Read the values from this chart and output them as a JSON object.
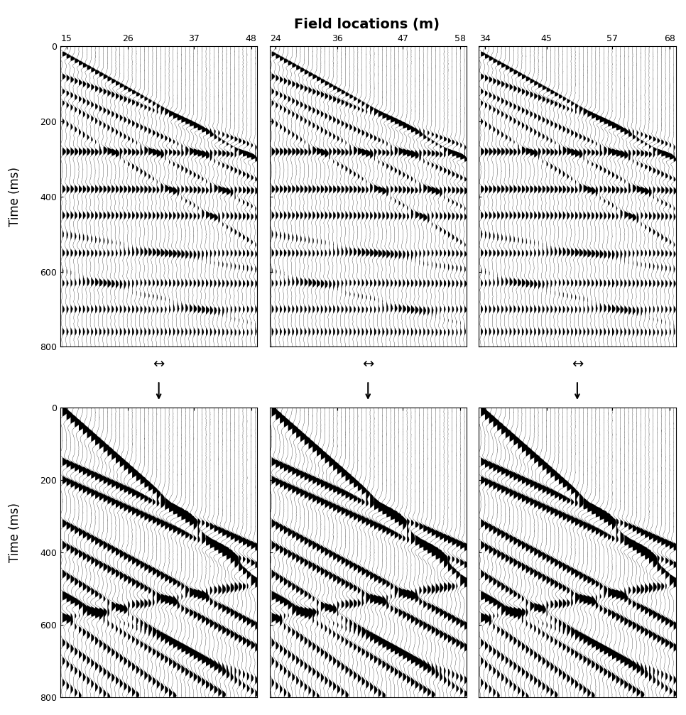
{
  "title": "Field locations (m)",
  "ylabel": "Time (ms)",
  "top_row_labels": [
    [
      "15",
      "26",
      "37",
      "48"
    ],
    [
      "24",
      "36",
      "47",
      "58"
    ],
    [
      "34",
      "45",
      "57",
      "68"
    ]
  ],
  "yticks": [
    0,
    200,
    400,
    600,
    800
  ],
  "time_max": 800,
  "n_traces": 48,
  "background_color": "#ffffff",
  "trace_color": "#000000",
  "fill_color": "#000000"
}
